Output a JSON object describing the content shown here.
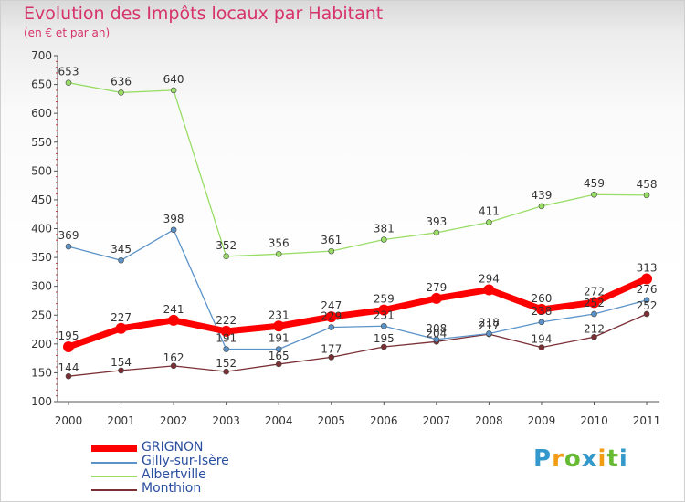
{
  "title": "Evolution des Impôts locaux par Habitant",
  "subtitle": "(en € et par an)",
  "chart_data": {
    "type": "line",
    "x": [
      "2000",
      "2001",
      "2002",
      "2003",
      "2004",
      "2005",
      "2006",
      "2007",
      "2008",
      "2009",
      "2010",
      "2011"
    ],
    "ylim": [
      100,
      700
    ],
    "yticks": [
      100,
      150,
      200,
      250,
      300,
      350,
      400,
      450,
      500,
      550,
      600,
      650,
      700
    ],
    "grid": false,
    "series": [
      {
        "name": "GRIGNON",
        "color": "#ff0000",
        "values": [
          195,
          227,
          241,
          222,
          231,
          247,
          259,
          279,
          294,
          260,
          272,
          313
        ],
        "labels": [
          "195",
          "227",
          "241",
          "222",
          "231",
          "247",
          "259",
          "279",
          "294",
          "260",
          "272",
          "313"
        ]
      },
      {
        "name": "Gilly-sur-Isère",
        "color": "#5b93c8",
        "values": [
          369,
          345,
          398,
          191,
          191,
          229,
          231,
          208,
          218,
          238,
          252,
          276
        ],
        "labels": [
          "369",
          "345",
          "398",
          "191",
          "191",
          "229",
          "231",
          "208",
          "218",
          "238",
          "252",
          "276"
        ]
      },
      {
        "name": "Albertville",
        "color": "#99dd66",
        "values": [
          653,
          636,
          640,
          352,
          356,
          361,
          381,
          393,
          411,
          439,
          459,
          458
        ],
        "labels": [
          "653",
          "636",
          "640",
          "352",
          "356",
          "361",
          "381",
          "393",
          "411",
          "439",
          "459",
          "458"
        ]
      },
      {
        "name": "Monthion",
        "color": "#7a2f35",
        "values": [
          144,
          154,
          162,
          152,
          165,
          177,
          195,
          204,
          217,
          194,
          212,
          252
        ],
        "labels": [
          "144",
          "154",
          "162",
          "152",
          "165",
          "177",
          "195",
          "204",
          "217",
          "194",
          "212",
          "252"
        ]
      }
    ]
  },
  "legend": [
    {
      "name": "GRIGNON",
      "color": "#ff0000"
    },
    {
      "name": "Gilly-sur-Isère",
      "color": "#5b93c8"
    },
    {
      "name": "Albertville",
      "color": "#99dd66"
    },
    {
      "name": "Monthion",
      "color": "#7a2f35"
    }
  ],
  "logo": {
    "letters": [
      "P",
      "r",
      "o",
      "x",
      "i",
      "t",
      "i"
    ],
    "colors": [
      "#3399cc",
      "#f39c12",
      "#66bb33",
      "#3399cc",
      "#f39c12",
      "#66bb33",
      "#3399cc"
    ]
  }
}
